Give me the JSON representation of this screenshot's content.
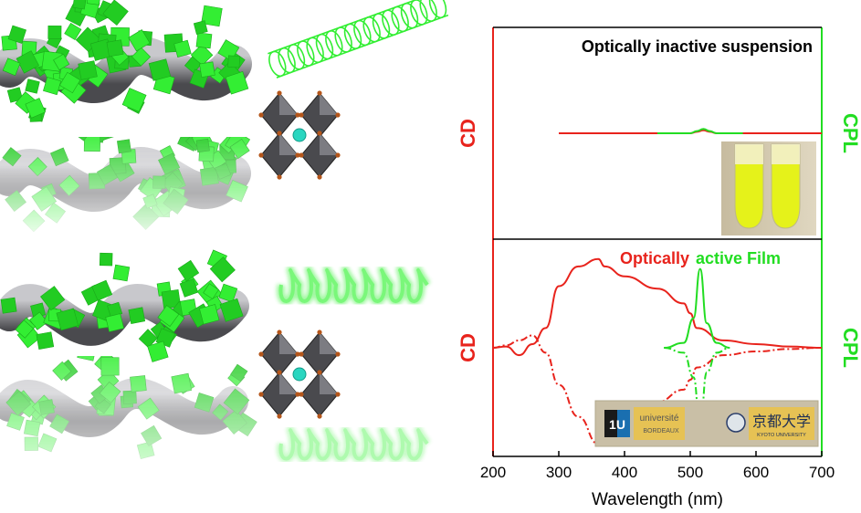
{
  "chart_data": [
    {
      "type": "line",
      "panel": "top",
      "title": "Optically inactive suspension",
      "left_axis_label": "CD",
      "right_axis_label": "CPL",
      "x": [
        300,
        350,
        400,
        450,
        500,
        510,
        520,
        530,
        540,
        580,
        650,
        700
      ],
      "series": [
        {
          "color": "#e8231c",
          "style": "solid",
          "values": [
            0,
            0,
            0,
            0,
            0,
            0.2,
            0.4,
            0.2,
            0,
            0,
            0,
            0
          ]
        },
        {
          "color": "#22dd22",
          "style": "solid",
          "values": [
            null,
            null,
            null,
            0,
            0,
            0.3,
            0.6,
            0.3,
            0,
            0,
            null,
            null
          ]
        }
      ],
      "xlim": [
        200,
        700
      ],
      "ticks_labeled": false
    },
    {
      "type": "line",
      "panel": "bottom",
      "title_parts": [
        "Optically",
        "active Film"
      ],
      "left_axis_label": "CD",
      "right_axis_label": "CPL",
      "x": [
        200,
        220,
        240,
        260,
        280,
        300,
        330,
        360,
        370,
        400,
        450,
        490,
        500,
        510,
        550,
        600,
        650,
        700
      ],
      "series": [
        {
          "color": "#e8231c",
          "style": "solid",
          "values": [
            0,
            0.05,
            -0.3,
            0.15,
            0.8,
            2.5,
            3.3,
            3.6,
            3.3,
            2.9,
            2.4,
            1.8,
            1.4,
            0.8,
            0.3,
            0.15,
            0.05,
            0
          ]
        },
        {
          "color": "#e8231c",
          "style": "dash-dot",
          "values": [
            0,
            0.1,
            0.3,
            0.5,
            -0.2,
            -1.5,
            -2.8,
            -3.9,
            -3.6,
            -2.8,
            -2.2,
            -1.7,
            -1.3,
            -0.8,
            -0.3,
            -0.15,
            -0.05,
            0
          ]
        },
        {
          "color": "#22dd22",
          "style": "solid",
          "x": [
            460,
            490,
            505,
            515,
            525,
            540,
            560
          ],
          "values": [
            0,
            0.2,
            1.2,
            3.2,
            1.0,
            0.2,
            0
          ]
        },
        {
          "color": "#22dd22",
          "style": "dash-dot",
          "x": [
            460,
            490,
            505,
            515,
            525,
            540,
            560
          ],
          "values": [
            0,
            -0.2,
            -1.2,
            -3.2,
            -1.0,
            -0.2,
            0
          ]
        }
      ],
      "xlabel": "Wavelength (nm)",
      "xticks": [
        200,
        300,
        400,
        500,
        600,
        700
      ],
      "xlim": [
        200,
        700
      ]
    }
  ],
  "colors": {
    "cd_red": "#e8231c",
    "cpl_green": "#22dd22",
    "crystal_green": "#33ee33",
    "helix_grey": "#8a8a8e"
  },
  "logos": {
    "logo1": "1U",
    "logo2_a": "université",
    "logo2_b": "BORDEAUX",
    "logo3_a": "京都大学",
    "logo3_b": "KYOTO UNIVERSITY"
  }
}
